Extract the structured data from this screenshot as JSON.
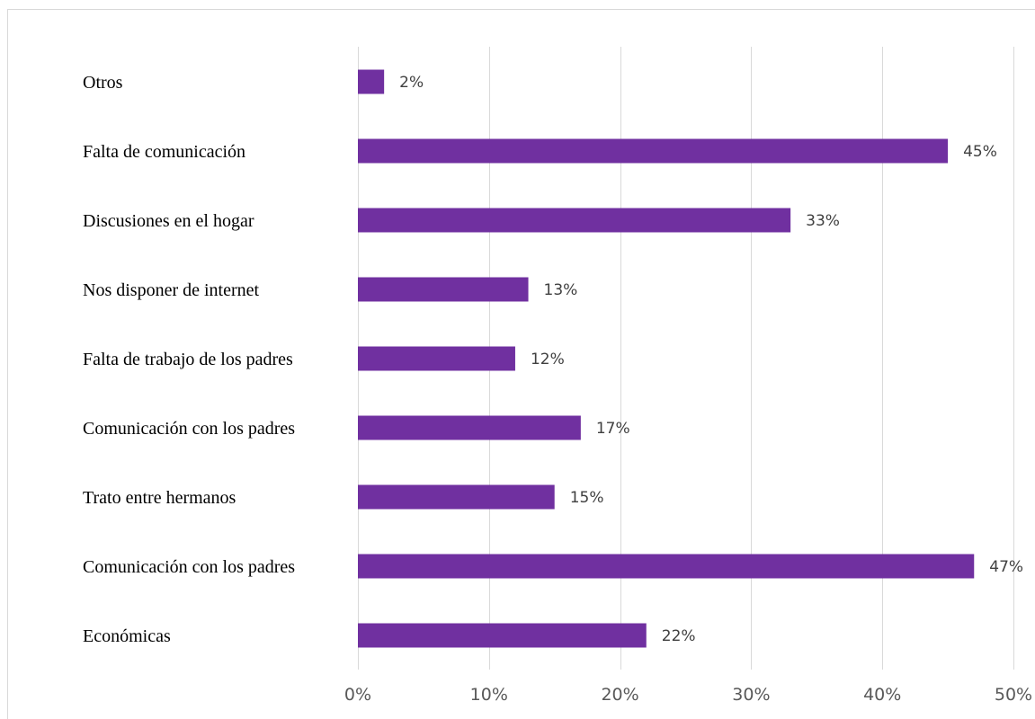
{
  "chart_data": {
    "type": "bar",
    "orientation": "horizontal",
    "categories": [
      "Otros",
      "Falta de comunicación",
      "Discusiones en el hogar",
      "Nos disponer de internet",
      "Falta de trabajo de los padres",
      "Comunicación con los padres",
      "Trato entre hermanos",
      "Comunicación con los padres",
      "Económicas"
    ],
    "values": [
      2,
      45,
      33,
      13,
      12,
      17,
      15,
      47,
      22
    ],
    "value_labels": [
      "2%",
      "45%",
      "33%",
      "13%",
      "12%",
      "17%",
      "15%",
      "47%",
      "22%"
    ],
    "x_ticks": [
      0,
      10,
      20,
      30,
      40,
      50
    ],
    "x_tick_labels": [
      "0%",
      "10%",
      "20%",
      "30%",
      "40%",
      "50%"
    ],
    "xlim": [
      0,
      50
    ],
    "grid": "vertical",
    "legend": "none",
    "title": "",
    "xlabel": "",
    "ylabel": "",
    "bar_color": "#7030a0",
    "grid_color": "#d9d9d9"
  }
}
